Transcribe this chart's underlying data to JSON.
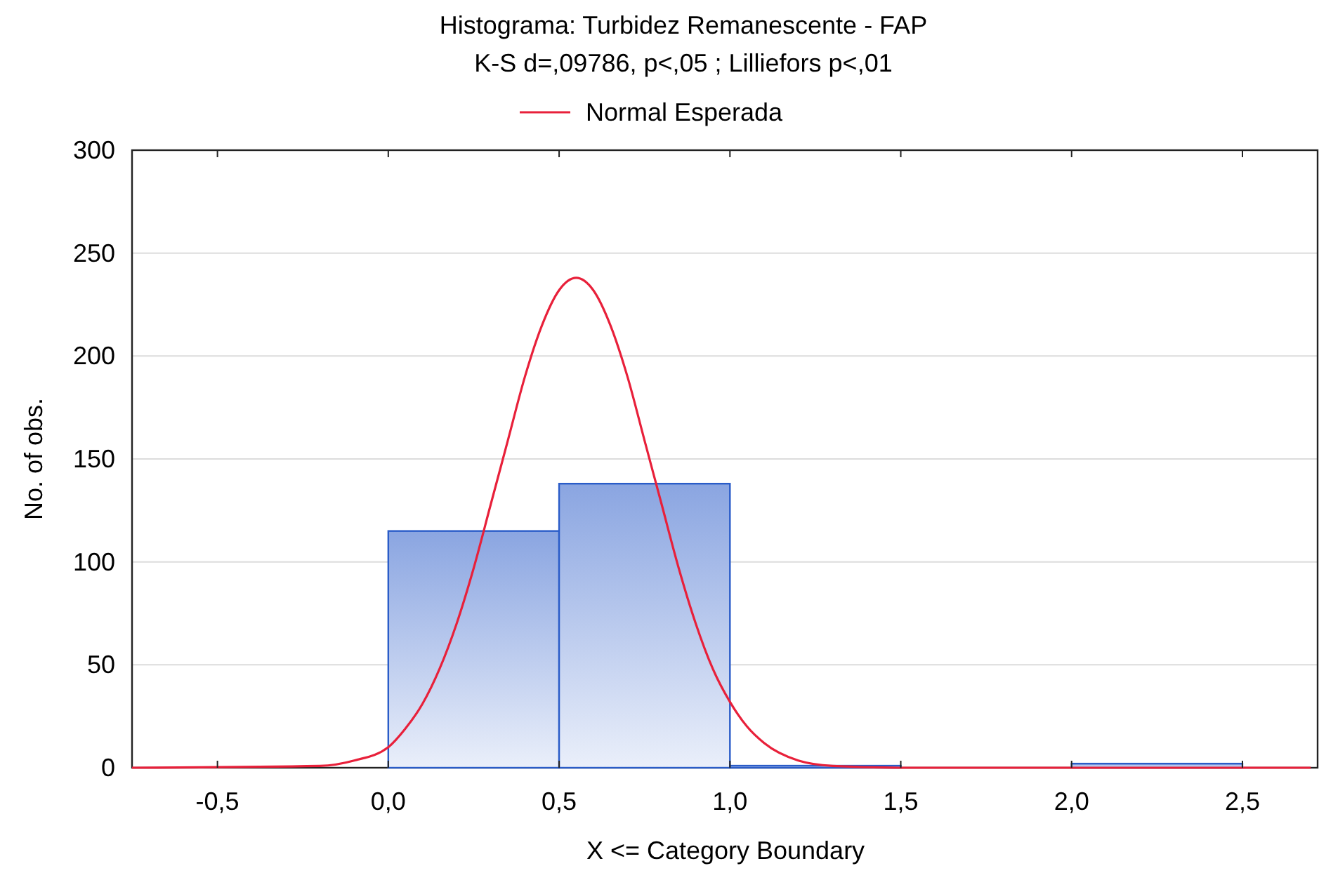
{
  "chart_data": {
    "type": "histogram",
    "title": "Histograma: Turbidez Remanescente - FAP",
    "subtitle": "K-S d=,09786, p<,05 ; Lilliefors p<,01",
    "xlabel": "X <= Category Boundary",
    "ylabel": "No. of obs.",
    "bins": [
      0,
      0.5,
      1,
      1.5,
      2,
      2.5
    ],
    "series": [
      {
        "color": "#2a5cc8",
        "values": [
          115,
          138,
          1,
          0,
          2
        ]
      },
      {
        "type": "line",
        "name": "Normal Esperada",
        "color": "#e8203a",
        "x": [
          -0.75,
          -0.2,
          -0.1,
          0,
          0.05,
          0.1,
          0.15,
          0.2,
          0.25,
          0.3,
          0.35,
          0.4,
          0.45,
          0.5,
          0.55,
          0.6,
          0.65,
          0.7,
          0.75,
          0.8,
          0.85,
          0.9,
          0.95,
          1.0,
          1.05,
          1.1,
          1.2,
          1.3,
          1.5,
          2.7
        ],
        "values": [
          0,
          0.9,
          3.5,
          10,
          19,
          31,
          48,
          70,
          97,
          128,
          159,
          190,
          215,
          232,
          238,
          232,
          215,
          190,
          159,
          128,
          97,
          70,
          48,
          32,
          20,
          12,
          3.5,
          0.9,
          0,
          0
        ]
      }
    ],
    "xlim": [
      -0.75,
      2.72
    ],
    "ylim": [
      0,
      300
    ],
    "xticks": [
      {
        "value": -0.5,
        "label": "-0,5"
      },
      {
        "value": 0,
        "label": "0,0"
      },
      {
        "value": 0.5,
        "label": "0,5"
      },
      {
        "value": 1,
        "label": "1,0"
      },
      {
        "value": 1.5,
        "label": "1,5"
      },
      {
        "value": 2,
        "label": "2,0"
      },
      {
        "value": 2.5,
        "label": "2,5"
      }
    ],
    "yticks": [
      0,
      50,
      100,
      150,
      200,
      250,
      300
    ],
    "grid": "y",
    "legend": "top",
    "marker": "none"
  }
}
